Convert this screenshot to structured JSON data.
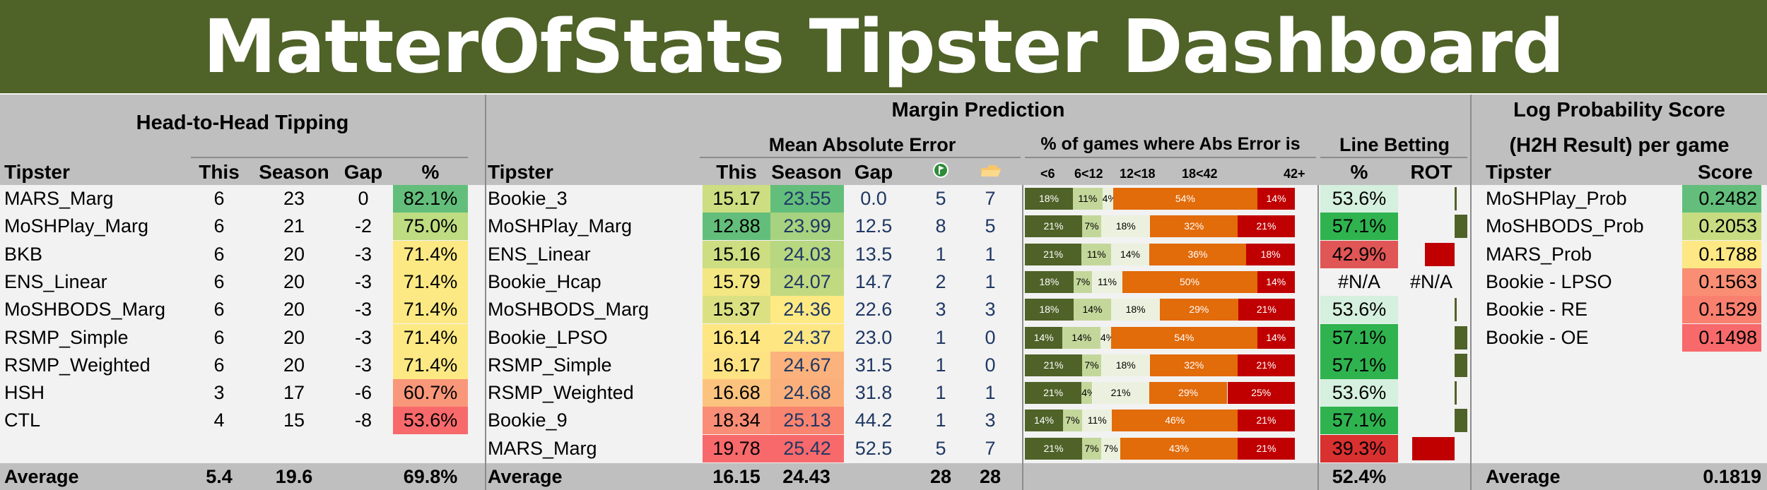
{
  "title": "MatterOfStats Tipster Dashboard",
  "h2h": {
    "section_title": "Head-to-Head Tipping",
    "headers": [
      "Tipster",
      "This",
      "Season",
      "Gap",
      "%"
    ],
    "rows": [
      {
        "tipster": "MARS_Marg",
        "this": "6",
        "season": "23",
        "gap": "0",
        "pct": "82.1%",
        "color": "#63be7b"
      },
      {
        "tipster": "MoSHPlay_Marg",
        "this": "6",
        "season": "21",
        "gap": "-2",
        "pct": "75.0%",
        "color": "#bedc81"
      },
      {
        "tipster": "BKB",
        "this": "6",
        "season": "20",
        "gap": "-3",
        "pct": "71.4%",
        "color": "#fde983"
      },
      {
        "tipster": "ENS_Linear",
        "this": "6",
        "season": "20",
        "gap": "-3",
        "pct": "71.4%",
        "color": "#fde983"
      },
      {
        "tipster": "MoSHBODS_Marg",
        "this": "6",
        "season": "20",
        "gap": "-3",
        "pct": "71.4%",
        "color": "#fde983"
      },
      {
        "tipster": "RSMP_Simple",
        "this": "6",
        "season": "20",
        "gap": "-3",
        "pct": "71.4%",
        "color": "#fde983"
      },
      {
        "tipster": "RSMP_Weighted",
        "this": "6",
        "season": "20",
        "gap": "-3",
        "pct": "71.4%",
        "color": "#fde983"
      },
      {
        "tipster": "HSH",
        "this": "3",
        "season": "17",
        "gap": "-6",
        "pct": "60.7%",
        "color": "#f9977a"
      },
      {
        "tipster": "CTL",
        "this": "4",
        "season": "15",
        "gap": "-8",
        "pct": "53.6%",
        "color": "#f8696b"
      }
    ],
    "average": {
      "label": "Average",
      "this": "5.4",
      "season": "19.6",
      "pct": "69.8%"
    }
  },
  "margin": {
    "section_title": "Margin Prediction",
    "mae_title": "Mean Absolute Error",
    "dist_title": "% of games where Abs Error is",
    "line_title": "Line Betting",
    "headers": {
      "tipster": "Tipster",
      "this": "This",
      "season": "Season",
      "gap": "Gap",
      "pct": "%",
      "rot": "ROT"
    },
    "icons": [
      "green-flag-icon",
      "folder-icon"
    ],
    "buckets": [
      "<6",
      "6<12",
      "12<18",
      "18<42",
      "42+"
    ],
    "bucket_colors": [
      "#4f6228",
      "#c4d79b",
      "#ebf1de",
      "#e26b0a",
      "#c00000"
    ],
    "rows": [
      {
        "tipster": "Bookie_3",
        "this": "15.17",
        "season": "23.55",
        "gap": "0.0",
        "a": "5",
        "b": "7",
        "this_color": "#cddd82",
        "season_color": "#63be7b",
        "dist": [
          18,
          11,
          4,
          54,
          14
        ],
        "dist_labels": [
          "18%",
          "11%",
          "4%",
          "54%",
          "14%"
        ],
        "pct": "53.6%",
        "pct_color": "#d5f0de",
        "rot": 0.03
      },
      {
        "tipster": "MoSHPlay_Marg",
        "this": "12.88",
        "season": "23.99",
        "gap": "12.5",
        "a": "8",
        "b": "5",
        "this_color": "#63be7b",
        "season_color": "#a7d27f",
        "dist": [
          21,
          7,
          18,
          32,
          21
        ],
        "dist_labels": [
          "21%",
          "7%",
          "18%",
          "32%",
          "21%"
        ],
        "pct": "57.1%",
        "pct_color": "#2fb34f",
        "rot": 0.3
      },
      {
        "tipster": "ENS_Linear",
        "this": "15.16",
        "season": "24.03",
        "gap": "13.5",
        "a": "1",
        "b": "1",
        "this_color": "#ccdd82",
        "season_color": "#b7d780",
        "dist": [
          21,
          11,
          14,
          36,
          18
        ],
        "dist_labels": [
          "21%",
          "11%",
          "14%",
          "36%",
          "18%"
        ],
        "pct": "42.9%",
        "pct_color": "#e05555",
        "rot": -0.7
      },
      {
        "tipster": "Bookie_Hcap",
        "this": "15.79",
        "season": "24.07",
        "gap": "14.7",
        "a": "2",
        "b": "1",
        "this_color": "#f3e783",
        "season_color": "#c1da81",
        "dist": [
          18,
          7,
          11,
          50,
          14
        ],
        "dist_labels": [
          "18%",
          "7%",
          "11%",
          "50%",
          "14%"
        ],
        "pct": "#N/A",
        "pct_color": "#f2f2f2",
        "rot": null,
        "rot_text": "#N/A"
      },
      {
        "tipster": "MoSHBODS_Marg",
        "this": "15.37",
        "season": "24.36",
        "gap": "22.6",
        "a": "3",
        "b": "3",
        "this_color": "#dbe182",
        "season_color": "#fee983",
        "dist": [
          18,
          14,
          18,
          29,
          21
        ],
        "dist_labels": [
          "18%",
          "14%",
          "18%",
          "29%",
          "21%"
        ],
        "pct": "53.6%",
        "pct_color": "#d5f0de",
        "rot": 0.03
      },
      {
        "tipster": "Bookie_LPSO",
        "this": "16.14",
        "season": "24.37",
        "gap": "23.0",
        "a": "1",
        "b": "0",
        "this_color": "#fee683",
        "season_color": "#fee683",
        "dist": [
          14,
          14,
          4,
          54,
          14
        ],
        "dist_labels": [
          "14%",
          "14%",
          "4%",
          "54%",
          "14%"
        ],
        "pct": "57.1%",
        "pct_color": "#2fb34f",
        "rot": 0.3
      },
      {
        "tipster": "RSMP_Simple",
        "this": "16.17",
        "season": "24.67",
        "gap": "31.5",
        "a": "1",
        "b": "0",
        "this_color": "#fde383",
        "season_color": "#fbb27c",
        "dist": [
          21,
          7,
          18,
          32,
          21
        ],
        "dist_labels": [
          "21%",
          "7%",
          "18%",
          "32%",
          "21%"
        ],
        "pct": "57.1%",
        "pct_color": "#2fb34f",
        "rot": 0.3
      },
      {
        "tipster": "RSMP_Weighted",
        "this": "16.68",
        "season": "24.68",
        "gap": "31.8",
        "a": "1",
        "b": "1",
        "this_color": "#fcc37e",
        "season_color": "#fbb07c",
        "dist": [
          21,
          4,
          21,
          29,
          25
        ],
        "dist_labels": [
          "21%",
          "4%",
          "21%",
          "29%",
          "25%"
        ],
        "pct": "53.6%",
        "pct_color": "#d5f0de",
        "rot": 0.03
      },
      {
        "tipster": "Bookie_9",
        "this": "18.34",
        "season": "25.13",
        "gap": "44.2",
        "a": "1",
        "b": "3",
        "this_color": "#f98d75",
        "season_color": "#f98470",
        "dist": [
          14,
          7,
          11,
          46,
          21
        ],
        "dist_labels": [
          "14%",
          "7%",
          "11%",
          "46%",
          "21%"
        ],
        "pct": "57.1%",
        "pct_color": "#2fb34f",
        "rot": 0.3
      },
      {
        "tipster": "MARS_Marg",
        "this": "19.78",
        "season": "25.42",
        "gap": "52.5",
        "a": "5",
        "b": "7",
        "this_color": "#f8696b",
        "season_color": "#f8696b",
        "dist": [
          21,
          7,
          7,
          43,
          21
        ],
        "dist_labels": [
          "21%",
          "7%",
          "7%",
          "43%",
          "21%"
        ],
        "pct": "39.3%",
        "pct_color": "#d93030",
        "rot": -1.0
      }
    ],
    "average": {
      "label": "Average",
      "this": "16.15",
      "season": "24.43",
      "a": "28",
      "b": "28",
      "pct": "52.4%"
    }
  },
  "logprob": {
    "section_title_1": "Log Probability Score",
    "section_title_2": "(H2H Result) per game",
    "headers": [
      "Tipster",
      "Score"
    ],
    "rows": [
      {
        "tipster": "MoSHPlay_Prob",
        "score": "0.2482",
        "color": "#63be7b"
      },
      {
        "tipster": "MoSHBODS_Prob",
        "score": "0.2053",
        "color": "#c7dc81"
      },
      {
        "tipster": "MARS_Prob",
        "score": "0.1788",
        "color": "#fde883"
      },
      {
        "tipster": "Bookie - LPSO",
        "score": "0.1563",
        "color": "#f98e75"
      },
      {
        "tipster": "Bookie - RE",
        "score": "0.1529",
        "color": "#f97f6f"
      },
      {
        "tipster": "Bookie - OE",
        "score": "0.1498",
        "color": "#f8696b"
      }
    ],
    "average": {
      "label": "Average",
      "score": "0.1819"
    }
  }
}
